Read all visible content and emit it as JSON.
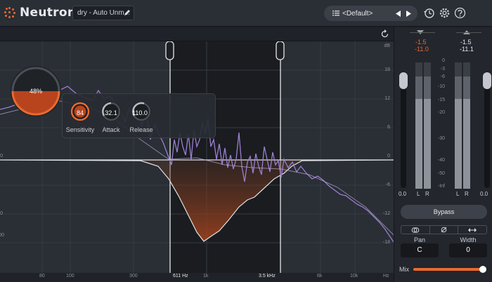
{
  "app": {
    "title": "Neutron"
  },
  "header": {
    "track_name": "dry - Auto Unm...",
    "preset": "<Default>"
  },
  "colors": {
    "accent": "#e86a2f",
    "spectrum": "#9a7fd0"
  },
  "compressor": {
    "amount": "48%",
    "sensitivity_value": "84",
    "sensitivity_label": "Sensitivity",
    "attack_value": "32.1",
    "attack_label": "Attack",
    "release_value": "110.0",
    "release_label": "Release"
  },
  "graph": {
    "db_right": [
      "dB",
      "18",
      "12",
      "6",
      "0",
      "-6",
      "-12",
      "-18"
    ],
    "db_left": [
      "0",
      "0",
      "00"
    ],
    "freq": [
      "80",
      "100",
      "300",
      "1k",
      "6k",
      "10k",
      "Hz"
    ],
    "band_low": "611 Hz",
    "band_high": "3.5 kHz"
  },
  "meters": {
    "input_peak": "-1.5",
    "input_rms": "-11.0",
    "output_peak": "-1.5",
    "output_rms": "-11.1",
    "scale": [
      "0",
      "-3",
      "-6",
      "-10",
      "-15",
      "-20",
      "-30",
      "-40",
      "-50",
      "-Inf"
    ],
    "input_gain": "0.0",
    "output_gain": "0.0",
    "channel_l": "L",
    "channel_r": "R"
  },
  "controls": {
    "bypass_label": "Bypass",
    "pan_label": "Pan",
    "pan_value": "C",
    "width_label": "Width",
    "width_value": "0",
    "mix_label": "Mix"
  }
}
